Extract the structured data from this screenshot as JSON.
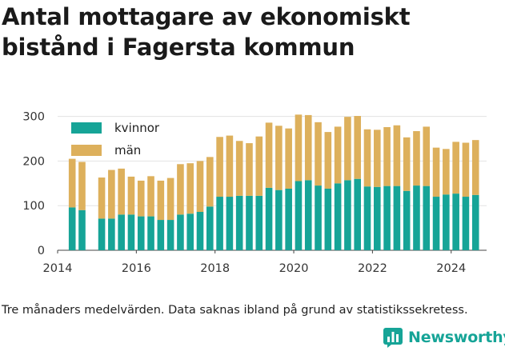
{
  "chart_data": {
    "type": "bar",
    "stacked": true,
    "title": "Antal mottagare av ekonomiskt bistånd i Fagersta kommun",
    "x_ticks": [
      "2014",
      "2016",
      "2018",
      "2020",
      "2022",
      "2024"
    ],
    "y_ticks": [
      0,
      100,
      200,
      300
    ],
    "ylim": [
      0,
      310
    ],
    "xlim": [
      2014.0,
      2024.9
    ],
    "grid": "horizontal",
    "legend_placement": "top-left",
    "x": [
      2014.37,
      2014.62,
      2015.12,
      2015.37,
      2015.62,
      2015.87,
      2016.12,
      2016.37,
      2016.62,
      2016.87,
      2017.12,
      2017.37,
      2017.62,
      2017.87,
      2018.12,
      2018.37,
      2018.62,
      2018.87,
      2019.12,
      2019.37,
      2019.62,
      2019.87,
      2020.12,
      2020.37,
      2020.62,
      2020.87,
      2021.12,
      2021.37,
      2021.62,
      2021.87,
      2022.12,
      2022.37,
      2022.62,
      2022.87,
      2023.12,
      2023.37,
      2023.62,
      2023.87,
      2024.12,
      2024.37,
      2024.62
    ],
    "series": [
      {
        "name": "kvinnor",
        "color": "#16a497",
        "values": [
          96,
          90,
          71,
          71,
          80,
          80,
          76,
          76,
          68,
          68,
          80,
          82,
          86,
          98,
          120,
          120,
          122,
          122,
          122,
          140,
          135,
          138,
          155,
          157,
          145,
          138,
          150,
          157,
          160,
          143,
          142,
          144,
          144,
          133,
          145,
          144,
          120,
          125,
          127,
          120,
          124
        ]
      },
      {
        "name": "män",
        "color": "#ddb05c",
        "values": [
          109,
          108,
          92,
          109,
          103,
          85,
          80,
          90,
          88,
          94,
          113,
          113,
          114,
          111,
          134,
          137,
          123,
          118,
          133,
          146,
          144,
          135,
          149,
          146,
          142,
          127,
          127,
          142,
          141,
          128,
          128,
          132,
          136,
          120,
          122,
          133,
          110,
          102,
          116,
          121,
          123
        ]
      }
    ]
  },
  "caption": "Tre månaders medelvärden. Data saknas ibland på grund av statistikssekretess.",
  "brand": {
    "name": "Newsworthy",
    "icon": "bar-chart-logo-icon",
    "color": "#16a497"
  }
}
